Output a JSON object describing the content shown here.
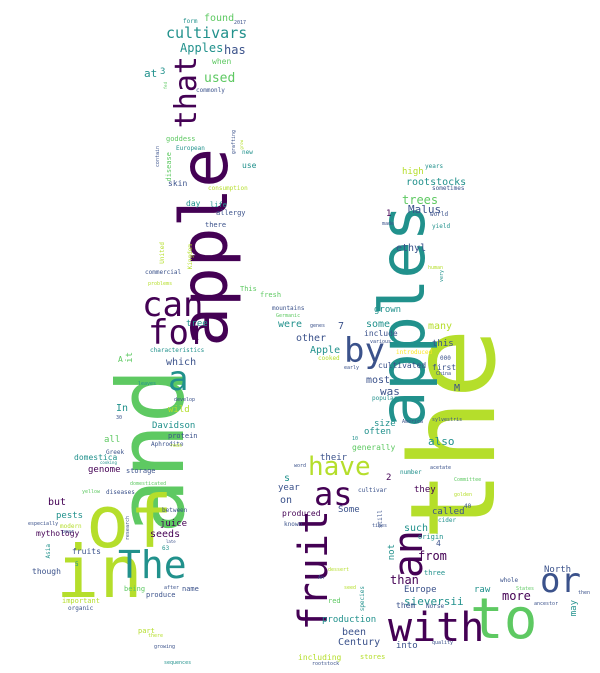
{
  "palette": {
    "dark_purple": "#440154",
    "indigo": "#3b528b",
    "teal": "#21918c",
    "green": "#5ec962",
    "lime": "#b5de2b",
    "yellow": "#fde725"
  },
  "words": [
    {
      "text": "the",
      "color": "#b5de2b"
    },
    {
      "text": "and",
      "color": "#5ec962"
    },
    {
      "text": "of",
      "color": "#b5de2b"
    },
    {
      "text": "in",
      "color": "#b5de2b"
    },
    {
      "text": "apple",
      "color": "#440154"
    },
    {
      "text": "apples",
      "color": "#21918c"
    },
    {
      "text": "to",
      "color": "#5ec962"
    },
    {
      "text": "with",
      "color": "#440154"
    },
    {
      "text": "The",
      "color": "#21918c"
    },
    {
      "text": "fruit",
      "color": "#440154"
    },
    {
      "text": "an",
      "color": "#440154"
    },
    {
      "text": "as",
      "color": "#440154"
    },
    {
      "text": "have",
      "color": "#b5de2b"
    },
    {
      "text": "by",
      "color": "#3b528b"
    },
    {
      "text": "or",
      "color": "#3b528b"
    },
    {
      "text": "can",
      "color": "#440154"
    },
    {
      "text": "for",
      "color": "#440154"
    },
    {
      "text": "a",
      "color": "#21918c"
    },
    {
      "text": "that",
      "color": "#440154"
    },
    {
      "text": "cultivars",
      "color": "#21918c"
    },
    {
      "text": "Apples",
      "color": "#21918c"
    },
    {
      "text": "has",
      "color": "#3b528b"
    },
    {
      "text": "found",
      "color": "#5ec962"
    },
    {
      "text": "used",
      "color": "#5ec962"
    },
    {
      "text": "when",
      "color": "#5ec962"
    },
    {
      "text": "at",
      "color": "#21918c"
    },
    {
      "text": "3",
      "color": "#21918c"
    },
    {
      "text": "commonly",
      "color": "#3b528b"
    },
    {
      "text": "form",
      "color": "#21918c"
    },
    {
      "text": "2017",
      "color": "#3b528b"
    },
    {
      "text": "goddess",
      "color": "#5ec962"
    },
    {
      "text": "European",
      "color": "#21918c"
    },
    {
      "text": "skin",
      "color": "#3b528b"
    },
    {
      "text": "day",
      "color": "#21918c"
    },
    {
      "text": "life",
      "color": "#21918c"
    },
    {
      "text": "allergy",
      "color": "#3b528b"
    },
    {
      "text": "there",
      "color": "#3b528b"
    },
    {
      "text": "consumption",
      "color": "#b5de2b"
    },
    {
      "text": "new",
      "color": "#21918c"
    },
    {
      "text": "use",
      "color": "#21918c"
    },
    {
      "text": "disease",
      "color": "#5ec962"
    },
    {
      "text": "high",
      "color": "#b5de2b"
    },
    {
      "text": "rootstocks",
      "color": "#21918c"
    },
    {
      "text": "sometimes",
      "color": "#3b528b"
    },
    {
      "text": "years",
      "color": "#21918c"
    },
    {
      "text": "trees",
      "color": "#5ec962"
    },
    {
      "text": "Malus",
      "color": "#3b528b"
    },
    {
      "text": "world",
      "color": "#3b528b"
    },
    {
      "text": "yield",
      "color": "#21918c"
    },
    {
      "text": "ethyl",
      "color": "#3b528b"
    },
    {
      "text": "1",
      "color": "#440154"
    },
    {
      "text": "made",
      "color": "#3b528b"
    },
    {
      "text": "human",
      "color": "#b5de2b"
    },
    {
      "text": "commercial",
      "color": "#3b528b"
    },
    {
      "text": "problems",
      "color": "#b5de2b"
    },
    {
      "text": "This",
      "color": "#5ec962"
    },
    {
      "text": "fresh",
      "color": "#5ec962"
    },
    {
      "text": "mountains",
      "color": "#3b528b"
    },
    {
      "text": "Germanic",
      "color": "#5ec962"
    },
    {
      "text": "grown",
      "color": "#21918c"
    },
    {
      "text": "some",
      "color": "#21918c"
    },
    {
      "text": "many",
      "color": "#b5de2b"
    },
    {
      "text": "tree",
      "color": "#21918c"
    },
    {
      "text": "were",
      "color": "#21918c"
    },
    {
      "text": "genes",
      "color": "#3b528b"
    },
    {
      "text": "7",
      "color": "#3b528b"
    },
    {
      "text": "other",
      "color": "#3b528b"
    },
    {
      "text": "include",
      "color": "#3b528b"
    },
    {
      "text": "various",
      "color": "#3b528b"
    },
    {
      "text": "this",
      "color": "#3b528b"
    },
    {
      "text": "Apple",
      "color": "#21918c"
    },
    {
      "text": "introduced",
      "color": "#fde725"
    },
    {
      "text": "000",
      "color": "#3b528b"
    },
    {
      "text": "cooked",
      "color": "#b5de2b"
    },
    {
      "text": "cultivated",
      "color": "#3b528b"
    },
    {
      "text": "first",
      "color": "#3b528b"
    },
    {
      "text": "early",
      "color": "#3b528b"
    },
    {
      "text": "China",
      "color": "#3b528b"
    },
    {
      "text": "characteristics",
      "color": "#21918c"
    },
    {
      "text": "which",
      "color": "#3b528b"
    },
    {
      "text": "it",
      "color": "#5ec962"
    },
    {
      "text": "A",
      "color": "#5ec962"
    },
    {
      "text": "develop",
      "color": "#3b528b"
    },
    {
      "text": "most",
      "color": "#3b528b"
    },
    {
      "text": "was",
      "color": "#3b528b"
    },
    {
      "text": "M",
      "color": "#3b528b"
    },
    {
      "text": "popular",
      "color": "#21918c"
    },
    {
      "text": "In",
      "color": "#21918c"
    },
    {
      "text": "30",
      "color": "#3b528b"
    },
    {
      "text": "wild",
      "color": "#b5de2b"
    },
    {
      "text": "Davidson",
      "color": "#21918c"
    },
    {
      "text": "protein",
      "color": "#3b528b"
    },
    {
      "text": "size",
      "color": "#21918c"
    },
    {
      "text": "often",
      "color": "#21918c"
    },
    {
      "text": "America",
      "color": "#3b528b"
    },
    {
      "text": "sylvestris",
      "color": "#3b528b"
    },
    {
      "text": "10",
      "color": "#21918c"
    },
    {
      "text": "generally",
      "color": "#5ec962"
    },
    {
      "text": "also",
      "color": "#21918c"
    },
    {
      "text": "all",
      "color": "#5ec962"
    },
    {
      "text": "Greek",
      "color": "#3b528b"
    },
    {
      "text": "genome",
      "color": "#440154"
    },
    {
      "text": "storage",
      "color": "#3b528b"
    },
    {
      "text": "cooking",
      "color": "#21918c"
    },
    {
      "text": "domestica",
      "color": "#21918c"
    },
    {
      "text": "Aphrodite",
      "color": "#3b528b"
    },
    {
      "text": "their",
      "color": "#3b528b"
    },
    {
      "text": "word",
      "color": "#3b528b"
    },
    {
      "text": "number",
      "color": "#21918c"
    },
    {
      "text": "acetate",
      "color": "#3b528b"
    },
    {
      "text": "2",
      "color": "#440154"
    },
    {
      "text": "s",
      "color": "#21918c"
    },
    {
      "text": "year",
      "color": "#3b528b"
    },
    {
      "text": "cultivar",
      "color": "#3b528b"
    },
    {
      "text": "they",
      "color": "#440154"
    },
    {
      "text": "Committee",
      "color": "#5ec962"
    },
    {
      "text": "golden",
      "color": "#b5de2b"
    },
    {
      "text": "on",
      "color": "#3b528b"
    },
    {
      "text": "Some",
      "color": "#3b528b"
    },
    {
      "text": "still",
      "color": "#3b528b"
    },
    {
      "text": "40",
      "color": "#3b528b"
    },
    {
      "text": "called",
      "color": "#3b528b"
    },
    {
      "text": "cider",
      "color": "#21918c"
    },
    {
      "text": "produced",
      "color": "#440154"
    },
    {
      "text": "known",
      "color": "#3b528b"
    },
    {
      "text": "origin",
      "color": "#21918c"
    },
    {
      "text": "such",
      "color": "#21918c"
    },
    {
      "text": "4",
      "color": "#3b528b"
    },
    {
      "text": "from",
      "color": "#440154"
    },
    {
      "text": "not",
      "color": "#21918c"
    },
    {
      "text": "North",
      "color": "#3b528b"
    },
    {
      "text": "three",
      "color": "#21918c"
    },
    {
      "text": "than",
      "color": "#440154"
    },
    {
      "text": "whole",
      "color": "#3b528b"
    },
    {
      "text": "Europe",
      "color": "#3b528b"
    },
    {
      "text": "raw",
      "color": "#21918c"
    },
    {
      "text": "more",
      "color": "#440154"
    },
    {
      "text": "sieversii",
      "color": "#21918c"
    },
    {
      "text": "States",
      "color": "#5ec962"
    },
    {
      "text": "ancestor",
      "color": "#3b528b"
    },
    {
      "text": "them",
      "color": "#3b528b"
    },
    {
      "text": "Norse",
      "color": "#3b528b"
    },
    {
      "text": "may",
      "color": "#21918c"
    },
    {
      "text": "then",
      "color": "#3b528b"
    },
    {
      "text": "Century",
      "color": "#3b528b"
    },
    {
      "text": "been",
      "color": "#3b528b"
    },
    {
      "text": "production",
      "color": "#21918c"
    },
    {
      "text": "into",
      "color": "#3b528b"
    },
    {
      "text": "quality",
      "color": "#3b528b"
    },
    {
      "text": "including",
      "color": "#b5de2b"
    },
    {
      "text": "stores",
      "color": "#b5de2b"
    },
    {
      "text": "rootstock",
      "color": "#3b528b"
    },
    {
      "text": "red",
      "color": "#5ec962"
    },
    {
      "text": "seed",
      "color": "#b5de2b"
    },
    {
      "text": "species",
      "color": "#21918c"
    },
    {
      "text": "times",
      "color": "#3b528b"
    },
    {
      "text": "An",
      "color": "#3b528b"
    },
    {
      "text": "dessert",
      "color": "#b5de2b"
    },
    {
      "text": "but",
      "color": "#440154"
    },
    {
      "text": "pests",
      "color": "#21918c"
    },
    {
      "text": "modern",
      "color": "#b5de2b"
    },
    {
      "text": "mythology",
      "color": "#440154"
    },
    {
      "text": "especially",
      "color": "#3b528b"
    },
    {
      "text": "pear",
      "color": "#3b528b"
    },
    {
      "text": "though",
      "color": "#3b528b"
    },
    {
      "text": "fruits",
      "color": "#3b528b"
    },
    {
      "text": "Asia",
      "color": "#21918c"
    },
    {
      "text": "juice",
      "color": "#440154"
    },
    {
      "text": "seeds",
      "color": "#440154"
    },
    {
      "text": "63",
      "color": "#21918c"
    },
    {
      "text": "being",
      "color": "#5ec962"
    },
    {
      "text": "produce",
      "color": "#3b528b"
    },
    {
      "text": "name",
      "color": "#3b528b"
    },
    {
      "text": "important",
      "color": "#b5de2b"
    },
    {
      "text": "organic",
      "color": "#3b528b"
    },
    {
      "text": "after",
      "color": "#3b528b"
    },
    {
      "text": "there",
      "color": "#b5de2b"
    },
    {
      "text": "part",
      "color": "#b5de2b"
    },
    {
      "text": "growing",
      "color": "#3b528b"
    },
    {
      "text": "sequences",
      "color": "#21918c"
    },
    {
      "text": "diseases",
      "color": "#3b528b"
    },
    {
      "text": "yellow",
      "color": "#5ec962"
    },
    {
      "text": "domesticated",
      "color": "#5ec962"
    },
    {
      "text": "between",
      "color": "#3b528b"
    },
    {
      "text": "late",
      "color": "#3b528b"
    },
    {
      "text": "grafting",
      "color": "#3b528b"
    },
    {
      "text": "contain",
      "color": "#3b528b"
    },
    {
      "text": "United",
      "color": "#b5de2b"
    },
    {
      "text": "Kingdom",
      "color": "#b5de2b"
    },
    {
      "text": "very",
      "color": "#21918c"
    },
    {
      "text": "research",
      "color": "#3b528b"
    },
    {
      "text": "5",
      "color": "#21918c"
    },
    {
      "text": "reds",
      "color": "#b5de2b"
    },
    {
      "text": "fed",
      "color": "#5ec962"
    },
    {
      "text": "grow",
      "color": "#b5de2b"
    },
    {
      "text": "leaves",
      "color": "#21918c"
    }
  ]
}
